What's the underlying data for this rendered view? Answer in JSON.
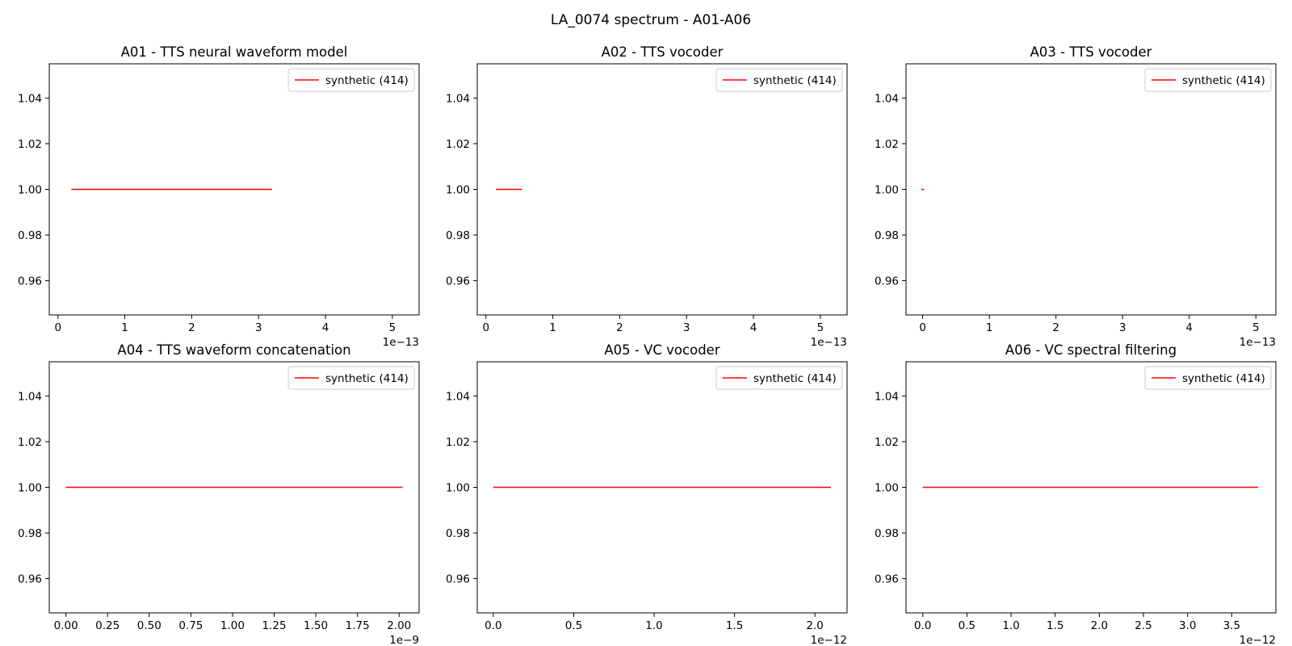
{
  "figure": {
    "title": "LA_0074 spectrum - A01-A06"
  },
  "chart_data": [
    {
      "type": "line",
      "title": "A01 - TTS neural waveform model",
      "xlabel": "",
      "ylabel": "",
      "x_ticks": [
        "0",
        "1",
        "2",
        "3",
        "4",
        "5"
      ],
      "x_tick_values": [
        0,
        1,
        2,
        3,
        4,
        5
      ],
      "x_offset_text": "1e−13",
      "y_ticks": [
        "0.96",
        "0.98",
        "1.00",
        "1.02",
        "1.04"
      ],
      "y_tick_values": [
        0.96,
        0.98,
        1.0,
        1.02,
        1.04
      ],
      "xlim": [
        -0.13,
        5.4
      ],
      "ylim": [
        0.945,
        1.055
      ],
      "grid": false,
      "legend_position": "upper right",
      "series": [
        {
          "name": "synthetic (414)",
          "color": "#ff0000",
          "x": [
            0.2,
            3.2
          ],
          "y": [
            1.0,
            1.0
          ]
        }
      ]
    },
    {
      "type": "line",
      "title": "A02 - TTS vocoder",
      "xlabel": "",
      "ylabel": "",
      "x_ticks": [
        "0",
        "1",
        "2",
        "3",
        "4",
        "5"
      ],
      "x_tick_values": [
        0,
        1,
        2,
        3,
        4,
        5
      ],
      "x_offset_text": "1e−13",
      "y_ticks": [
        "0.96",
        "0.98",
        "1.00",
        "1.02",
        "1.04"
      ],
      "y_tick_values": [
        0.96,
        0.98,
        1.0,
        1.02,
        1.04
      ],
      "xlim": [
        -0.13,
        5.4
      ],
      "ylim": [
        0.945,
        1.055
      ],
      "grid": false,
      "legend_position": "upper right",
      "series": [
        {
          "name": "synthetic (414)",
          "color": "#ff0000",
          "x": [
            0.15,
            0.54
          ],
          "y": [
            1.0,
            1.0
          ]
        }
      ]
    },
    {
      "type": "line",
      "title": "A03 - TTS vocoder",
      "xlabel": "",
      "ylabel": "",
      "x_ticks": [
        "0",
        "1",
        "2",
        "3",
        "4",
        "5"
      ],
      "x_tick_values": [
        0,
        1,
        2,
        3,
        4,
        5
      ],
      "x_offset_text": "1e−13",
      "y_ticks": [
        "0.96",
        "0.98",
        "1.00",
        "1.02",
        "1.04"
      ],
      "y_tick_values": [
        0.96,
        0.98,
        1.0,
        1.02,
        1.04
      ],
      "xlim": [
        -0.25,
        5.3
      ],
      "ylim": [
        0.945,
        1.055
      ],
      "grid": false,
      "legend_position": "upper right",
      "series": [
        {
          "name": "synthetic (414)",
          "color": "#ff0000",
          "x": [
            -0.02,
            0.02
          ],
          "y": [
            1.0,
            1.0
          ]
        }
      ]
    },
    {
      "type": "line",
      "title": "A04 - TTS waveform concatenation",
      "xlabel": "",
      "ylabel": "",
      "x_ticks": [
        "0.00",
        "0.25",
        "0.50",
        "0.75",
        "1.00",
        "1.25",
        "1.50",
        "1.75",
        "2.00"
      ],
      "x_tick_values": [
        0,
        0.25,
        0.5,
        0.75,
        1.0,
        1.25,
        1.5,
        1.75,
        2.0
      ],
      "x_offset_text": "1e−9",
      "y_ticks": [
        "0.96",
        "0.98",
        "1.00",
        "1.02",
        "1.04"
      ],
      "y_tick_values": [
        0.96,
        0.98,
        1.0,
        1.02,
        1.04
      ],
      "xlim": [
        -0.1,
        2.12
      ],
      "ylim": [
        0.945,
        1.055
      ],
      "grid": false,
      "legend_position": "upper right",
      "series": [
        {
          "name": "synthetic (414)",
          "color": "#ff0000",
          "x": [
            0.0,
            2.02
          ],
          "y": [
            1.0,
            1.0
          ]
        }
      ]
    },
    {
      "type": "line",
      "title": "A05 - VC vocoder",
      "xlabel": "",
      "ylabel": "",
      "x_ticks": [
        "0.0",
        "0.5",
        "1.0",
        "1.5",
        "2.0"
      ],
      "x_tick_values": [
        0,
        0.5,
        1.0,
        1.5,
        2.0
      ],
      "x_offset_text": "1e−12",
      "y_ticks": [
        "0.96",
        "0.98",
        "1.00",
        "1.02",
        "1.04"
      ],
      "y_tick_values": [
        0.96,
        0.98,
        1.0,
        1.02,
        1.04
      ],
      "xlim": [
        -0.1,
        2.2
      ],
      "ylim": [
        0.945,
        1.055
      ],
      "grid": false,
      "legend_position": "upper right",
      "series": [
        {
          "name": "synthetic (414)",
          "color": "#ff0000",
          "x": [
            0.0,
            2.1
          ],
          "y": [
            1.0,
            1.0
          ]
        }
      ]
    },
    {
      "type": "line",
      "title": "A06 - VC spectral filtering",
      "xlabel": "",
      "ylabel": "",
      "x_ticks": [
        "0.0",
        "0.5",
        "1.0",
        "1.5",
        "2.0",
        "2.5",
        "3.0",
        "3.5"
      ],
      "x_tick_values": [
        0,
        0.5,
        1.0,
        1.5,
        2.0,
        2.5,
        3.0,
        3.5
      ],
      "x_offset_text": "1e−12",
      "y_ticks": [
        "0.96",
        "0.98",
        "1.00",
        "1.02",
        "1.04"
      ],
      "y_tick_values": [
        0.96,
        0.98,
        1.0,
        1.02,
        1.04
      ],
      "xlim": [
        -0.19,
        4.0
      ],
      "ylim": [
        0.945,
        1.055
      ],
      "grid": false,
      "legend_position": "upper right",
      "series": [
        {
          "name": "synthetic (414)",
          "color": "#ff0000",
          "x": [
            0.0,
            3.8
          ],
          "y": [
            1.0,
            1.0
          ]
        }
      ]
    }
  ]
}
